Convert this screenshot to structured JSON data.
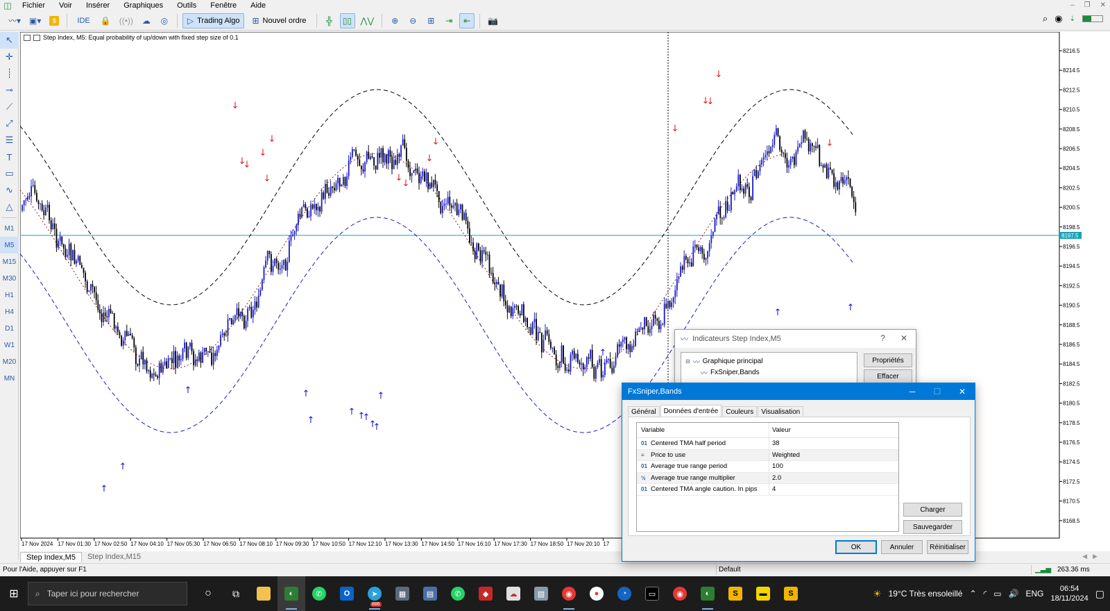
{
  "menu": [
    "Fichier",
    "Voir",
    "Insérer",
    "Graphiques",
    "Outils",
    "Fenêtre",
    "Aide"
  ],
  "toolbar": {
    "ide": "IDE",
    "algo": "Trading Algo",
    "order": "Nouvel ordre"
  },
  "timeframes": [
    "M1",
    "M5",
    "M15",
    "M30",
    "H1",
    "H4",
    "D1",
    "W1",
    "MN"
  ],
  "timeframes_extra": [
    "M20"
  ],
  "chart": {
    "title": "Step Index, M5:  Equal probability of up/down with fixed step size of 0.1",
    "price_labels": [
      "8216.5",
      "8214.5",
      "8212.5",
      "8210.5",
      "8208.5",
      "8206.5",
      "8204.5",
      "8202.5",
      "8200.5",
      "8198.5",
      "8196.5",
      "8194.5",
      "8192.5",
      "8190.5",
      "8188.5",
      "8186.5",
      "8184.5",
      "8182.5",
      "8180.5",
      "8178.5",
      "8176.5",
      "8174.5",
      "8172.5",
      "8170.5",
      "8168.5"
    ],
    "current_price": "8197.5",
    "time_labels": [
      "17 Nov 2024",
      "17 Nov 01:30",
      "17 Nov 02:50",
      "17 Nov 04:10",
      "17 Nov 05:30",
      "17 Nov 06:50",
      "17 Nov 08:10",
      "17 Nov 09:30",
      "17 Nov 10:50",
      "17 Nov 12:10",
      "17 Nov 13:30",
      "17 Nov 14:50",
      "17 Nov 16:10",
      "17 Nov 17:30",
      "17 Nov 18:50",
      "17 Nov 20:10",
      "17"
    ],
    "tabs": [
      "Step Index,M5",
      "Step Index,M15"
    ],
    "colors": {
      "bull": "#1a1acc",
      "bear": "#000000",
      "down_arrow": "#e02020",
      "up_arrow": "#1a1acc",
      "price_line": "#17a2b8"
    }
  },
  "status": {
    "help": "Pour l'Aide, appuyer sur F1",
    "profile": "Default",
    "ping": "263.36 ms"
  },
  "dlg_indicators": {
    "title": "Indicateurs Step Index,M5",
    "help": "?",
    "close": "✕",
    "tree_root": "Graphique principal",
    "tree_child": "FxSniper,Bands",
    "btn_props": "Propriétés",
    "btn_delete": "Effacer"
  },
  "dlg_fx": {
    "title": "FxSniper,Bands",
    "tabs": [
      "Général",
      "Données d'entrée",
      "Couleurs",
      "Visualisation"
    ],
    "col_var": "Variable",
    "col_val": "Valeur",
    "rows": [
      {
        "icon": "01",
        "name": "Centered TMA half period",
        "value": "38"
      },
      {
        "icon": "≡",
        "name": "Price to use",
        "value": "Weighted"
      },
      {
        "icon": "01",
        "name": "Average true range period",
        "value": "100"
      },
      {
        "icon": "½",
        "name": "Average true range multiplier",
        "value": "2.0"
      },
      {
        "icon": "01",
        "name": "Centered TMA angle caution. In pips",
        "value": "4"
      }
    ],
    "btn_load": "Charger",
    "btn_save": "Sauvegarder",
    "btn_ok": "OK",
    "btn_cancel": "Annuler",
    "btn_reset": "Réinitialiser"
  },
  "taskbar": {
    "search": "Taper ici pour rechercher",
    "weather": "19°C  Très ensoleillé",
    "lang": "ENG",
    "time": "06:54",
    "date": "18/11/2024",
    "badge": "886"
  }
}
